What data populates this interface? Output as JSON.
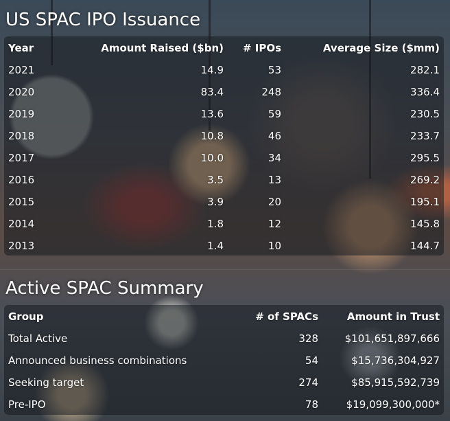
{
  "ipo": {
    "title": "US SPAC IPO Issuance",
    "headers": {
      "year": "Year",
      "amount": "Amount Raised ($bn)",
      "ipos": "# IPOs",
      "avg": "Average Size ($mm)"
    },
    "rows": [
      {
        "year": "2021",
        "amount": "14.9",
        "ipos": "53",
        "avg": "282.1"
      },
      {
        "year": "2020",
        "amount": "83.4",
        "ipos": "248",
        "avg": "336.4"
      },
      {
        "year": "2019",
        "amount": "13.6",
        "ipos": "59",
        "avg": "230.5"
      },
      {
        "year": "2018",
        "amount": "10.8",
        "ipos": "46",
        "avg": "233.7"
      },
      {
        "year": "2017",
        "amount": "10.0",
        "ipos": "34",
        "avg": "295.5"
      },
      {
        "year": "2016",
        "amount": "3.5",
        "ipos": "13",
        "avg": "269.2"
      },
      {
        "year": "2015",
        "amount": "3.9",
        "ipos": "20",
        "avg": "195.1"
      },
      {
        "year": "2014",
        "amount": "1.8",
        "ipos": "12",
        "avg": "145.8"
      },
      {
        "year": "2013",
        "amount": "1.4",
        "ipos": "10",
        "avg": "144.7"
      }
    ]
  },
  "summary": {
    "title": "Active SPAC Summary",
    "headers": {
      "group": "Group",
      "count": "# of SPACs",
      "trust": "Amount in Trust"
    },
    "rows": [
      {
        "group": "Total Active",
        "count": "328",
        "trust": "$101,651,897,666"
      },
      {
        "group": "Announced business combinations",
        "count": "54",
        "trust": "$15,736,304,927"
      },
      {
        "group": "Seeking target",
        "count": "274",
        "trust": "$85,915,592,739"
      },
      {
        "group": "Pre-IPO",
        "count": "78",
        "trust": "$19,099,300,000*"
      }
    ]
  }
}
